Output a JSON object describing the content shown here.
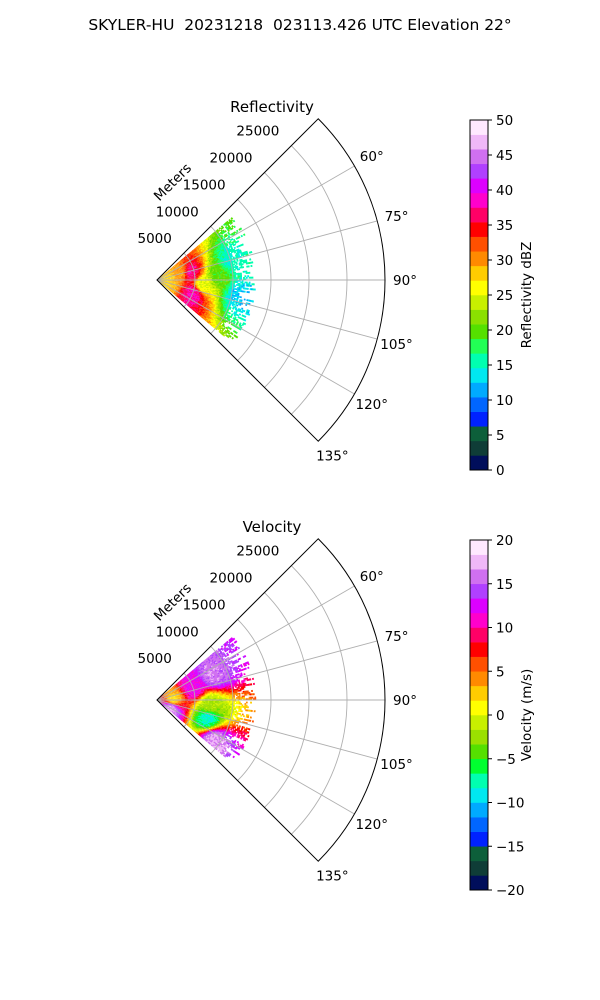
{
  "figure": {
    "title": "SKYLER-HU  20231218  023113.426 UTC Elevation 22°"
  },
  "chart_data": [
    {
      "type": "polar-sector",
      "title": "Reflectivity",
      "range_axis_label": "Meters",
      "range_ticks": [
        5000,
        10000,
        15000,
        20000,
        25000
      ],
      "range_tick_labels": [
        "5000",
        "10000",
        "15000",
        "20000",
        "25000"
      ],
      "range_max": 30000,
      "azimuth_range_deg": [
        45,
        135
      ],
      "azimuth_ticks_deg": [
        60,
        75,
        90,
        105,
        120,
        135
      ],
      "azimuth_tick_labels": [
        "60°",
        "75°",
        "90°",
        "105°",
        "120°",
        "135°"
      ],
      "grid": true,
      "colorbar": {
        "label": "Reflectivity dBZ",
        "min": 0,
        "max": 50,
        "ticks": [
          0,
          5,
          10,
          15,
          20,
          25,
          30,
          35,
          40,
          45,
          50
        ],
        "tick_labels": [
          "0",
          "5",
          "10",
          "15",
          "20",
          "25",
          "30",
          "35",
          "40",
          "45",
          "50"
        ],
        "colormap": [
          "#000e5b",
          "#0f3d37",
          "#0d5f3a",
          "#0022ff",
          "#0066ff",
          "#00aaff",
          "#00e8f0",
          "#00ffb0",
          "#22ff55",
          "#55e000",
          "#8be000",
          "#c8f000",
          "#ffff00",
          "#ffcc00",
          "#ff8a00",
          "#ff5000",
          "#ff0000",
          "#ff0066",
          "#ff00cc",
          "#dd00ff",
          "#b040ff",
          "#d070f0",
          "#f0b8f8",
          "#ffe8ff"
        ]
      },
      "approx_extent_m": {
        "min_range": 0,
        "max_range": 13000,
        "min_az": 50,
        "max_az": 130
      },
      "approx_gates": [
        {
          "range_m": 1500,
          "azimuth_deg": 90,
          "value": 28
        },
        {
          "range_m": 3000,
          "azimuth_deg": 72,
          "value": 30
        },
        {
          "range_m": 4500,
          "azimuth_deg": 78,
          "value": 37
        },
        {
          "range_m": 5000,
          "azimuth_deg": 110,
          "value": 38
        },
        {
          "range_m": 6000,
          "azimuth_deg": 95,
          "value": 25
        },
        {
          "range_m": 8000,
          "azimuth_deg": 85,
          "value": 20
        },
        {
          "range_m": 10000,
          "azimuth_deg": 75,
          "value": 15
        },
        {
          "range_m": 11000,
          "azimuth_deg": 100,
          "value": 13
        }
      ]
    },
    {
      "type": "polar-sector",
      "title": "Velocity",
      "range_axis_label": "Meters",
      "range_ticks": [
        5000,
        10000,
        15000,
        20000,
        25000
      ],
      "range_tick_labels": [
        "5000",
        "10000",
        "15000",
        "20000",
        "25000"
      ],
      "range_max": 30000,
      "azimuth_range_deg": [
        45,
        135
      ],
      "azimuth_ticks_deg": [
        60,
        75,
        90,
        105,
        120,
        135
      ],
      "azimuth_tick_labels": [
        "60°",
        "75°",
        "90°",
        "105°",
        "120°",
        "135°"
      ],
      "grid": true,
      "colorbar": {
        "label": "Velocity (m/s)",
        "min": -20,
        "max": 20,
        "ticks": [
          -20,
          -15,
          -10,
          -5,
          0,
          5,
          10,
          15,
          20
        ],
        "tick_labels": [
          "−20",
          "−15",
          "−10",
          "−5",
          "0",
          "5",
          "10",
          "15",
          "20"
        ],
        "colormap": [
          "#000e5b",
          "#0f3d37",
          "#0d5f3a",
          "#0022ff",
          "#0066ff",
          "#00aaff",
          "#00e8f0",
          "#00ffb0",
          "#00ff30",
          "#55e000",
          "#9be000",
          "#c8f000",
          "#ffff00",
          "#ffcc00",
          "#ff8a00",
          "#ff5000",
          "#ff0000",
          "#ff0066",
          "#ff00cc",
          "#dd00ff",
          "#b040ff",
          "#d070f0",
          "#f0b8f8",
          "#ffe8ff"
        ]
      },
      "approx_extent_m": {
        "min_range": 0,
        "max_range": 13000,
        "min_az": 50,
        "max_az": 130
      },
      "approx_gates": [
        {
          "range_m": 2000,
          "azimuth_deg": 90,
          "value": 2
        },
        {
          "range_m": 5000,
          "azimuth_deg": 70,
          "value": 12
        },
        {
          "range_m": 8000,
          "azimuth_deg": 65,
          "value": 16
        },
        {
          "range_m": 7000,
          "azimuth_deg": 95,
          "value": -2
        },
        {
          "range_m": 7000,
          "azimuth_deg": 110,
          "value": -8
        },
        {
          "range_m": 9000,
          "azimuth_deg": 125,
          "value": 17
        },
        {
          "range_m": 2000,
          "azimuth_deg": 120,
          "value": 17
        }
      ]
    }
  ]
}
